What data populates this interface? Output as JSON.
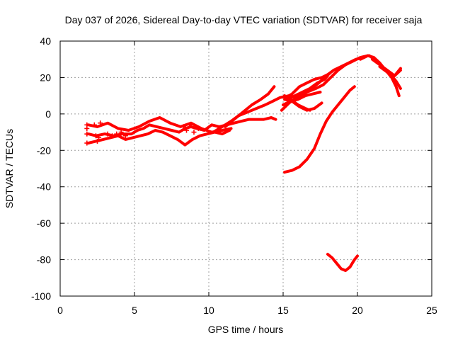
{
  "chart_data": {
    "type": "scatter",
    "title": "Day 037 of 2026, Sidereal Day-to-day VTEC variation (SDTVAR) for receiver saja",
    "xlabel": "GPS time / hours",
    "ylabel": "SDTVAR / TECUs",
    "xlim": [
      0,
      25
    ],
    "ylim": [
      -100,
      40
    ],
    "xticks": [
      0,
      5,
      10,
      15,
      20,
      25
    ],
    "yticks": [
      -100,
      -80,
      -60,
      -40,
      -20,
      0,
      20,
      40
    ],
    "grid": true,
    "color": "#ff0000",
    "series": [
      {
        "x": [
          1.9,
          2.4,
          3.0,
          3.6,
          4.2,
          4.8,
          5.2,
          5.6,
          6.0,
          6.5,
          7.0,
          7.5,
          8.0,
          8.4,
          8.8,
          9.2,
          9.7,
          10.2,
          10.7,
          11.2,
          11.7,
          12.2,
          12.7,
          13.2,
          13.7,
          14.2,
          14.5
        ],
        "y": [
          -11,
          -12,
          -11,
          -12,
          -11,
          -11,
          -9,
          -8,
          -6,
          -7,
          -8,
          -9,
          -10,
          -8,
          -7,
          -8,
          -9,
          -6,
          -7,
          -6,
          -5,
          -4,
          -3,
          -3,
          -3,
          -2,
          -3
        ]
      },
      {
        "x": [
          1.9,
          2.4,
          2.9,
          3.4,
          3.9,
          4.4,
          4.9,
          5.4,
          5.9,
          6.4,
          6.9,
          7.4,
          7.9,
          8.4,
          8.9,
          9.4,
          9.9,
          10.4,
          10.9,
          11.4
        ],
        "y": [
          -16,
          -15,
          -14,
          -13,
          -12,
          -14,
          -13,
          -12,
          -11,
          -9,
          -10,
          -12,
          -14,
          -17,
          -14,
          -12,
          -11,
          -10,
          -11,
          -9
        ]
      },
      {
        "x": [
          1.9,
          2.5,
          3.2,
          3.9,
          4.6,
          5.3,
          6.0,
          6.7,
          7.4,
          8.1,
          8.8,
          9.5,
          10.2,
          10.9,
          11.5
        ],
        "y": [
          -6,
          -7,
          -5,
          -8,
          -9,
          -7,
          -4,
          -2,
          -5,
          -7,
          -5,
          -8,
          -10,
          -9,
          -8
        ]
      },
      {
        "x": [
          10.3,
          10.9,
          11.5,
          12.0,
          12.6,
          13.2,
          13.8,
          14.3,
          14.8,
          15.4,
          16.0,
          16.6,
          17.2,
          17.7,
          18.2,
          18.7,
          19.2,
          19.7,
          20.2,
          20.7
        ],
        "y": [
          -10,
          -7,
          -4,
          -1,
          1,
          3,
          5,
          7,
          9,
          10,
          9,
          12,
          14,
          16,
          20,
          24,
          27,
          29,
          31,
          32
        ]
      },
      {
        "x": [
          11.1,
          11.7,
          12.3,
          12.9,
          13.5,
          14.0,
          14.4
        ],
        "y": [
          -7,
          -3,
          1,
          5,
          8,
          11,
          15
        ]
      },
      {
        "x": [
          14.9,
          15.4,
          15.9,
          16.4,
          16.9,
          17.4,
          17.9,
          18.4,
          18.9,
          19.4,
          19.9,
          20.4
        ],
        "y": [
          2,
          6,
          9,
          12,
          14,
          17,
          21,
          24,
          26,
          28,
          30,
          31
        ]
      },
      {
        "x": [
          15.2,
          15.6,
          16.1,
          16.6,
          17.1,
          17.6,
          18.1
        ],
        "y": [
          9,
          11,
          15,
          17,
          19,
          20,
          22
        ]
      },
      {
        "x": [
          15.0,
          15.5,
          16.0,
          16.5,
          17.0,
          17.5
        ],
        "y": [
          5,
          7,
          8,
          10,
          11,
          12
        ]
      },
      {
        "x": [
          15.3,
          15.8,
          16.3,
          16.8,
          17.3,
          17.8,
          18.0
        ],
        "y": [
          8,
          10,
          12,
          14,
          17,
          19,
          21
        ]
      },
      {
        "x": [
          15.1,
          15.6,
          16.1,
          16.6,
          17.1,
          17.6
        ],
        "y": [
          8,
          7,
          4,
          2,
          3,
          6
        ]
      },
      {
        "x": [
          15.1,
          15.5,
          16.0,
          16.5,
          16.8
        ],
        "y": [
          10,
          8,
          5,
          3,
          2
        ]
      },
      {
        "x": [
          20.2,
          20.7,
          21.1,
          21.5,
          21.9,
          22.3,
          22.6,
          22.8
        ],
        "y": [
          30,
          32,
          31,
          28,
          24,
          20,
          15,
          10
        ]
      },
      {
        "x": [
          20.8,
          21.3,
          21.8,
          22.2,
          22.6,
          22.9
        ],
        "y": [
          32,
          29,
          25,
          22,
          18,
          14
        ]
      },
      {
        "x": [
          21.0,
          21.5,
          22.0,
          22.5,
          22.9
        ],
        "y": [
          30,
          27,
          24,
          21,
          25
        ]
      },
      {
        "x": [
          21.5,
          22.0,
          22.5,
          22.9
        ],
        "y": [
          26,
          23,
          21,
          24
        ]
      },
      {
        "x": [
          15.1,
          15.6,
          16.1,
          16.6,
          17.1,
          17.5,
          17.9,
          18.3,
          18.7,
          19.1,
          19.5,
          19.8
        ],
        "y": [
          -32,
          -31,
          -29,
          -25,
          -19,
          -11,
          -4,
          1,
          5,
          9,
          13,
          15
        ]
      },
      {
        "x": [
          18.0,
          18.3,
          18.6,
          18.9,
          19.2,
          19.5,
          19.8,
          20.0
        ],
        "y": [
          -77,
          -79,
          -82,
          -85,
          -86,
          -84,
          -80,
          -78
        ]
      }
    ],
    "crosses": {
      "x": [
        1.8,
        1.8,
        1.8,
        1.8,
        2.3,
        2.4,
        2.5,
        2.6,
        2.7,
        3.2,
        3.5,
        3.8,
        4.1,
        4.4,
        8.3,
        8.5,
        8.7,
        9.0,
        9.3
      ],
      "y": [
        -6,
        -8,
        -11,
        -16,
        -6,
        -12,
        -15,
        -13,
        -5,
        -11,
        -12,
        -11,
        -10,
        -12,
        -7,
        -9,
        -6,
        -10,
        -8
      ]
    }
  }
}
